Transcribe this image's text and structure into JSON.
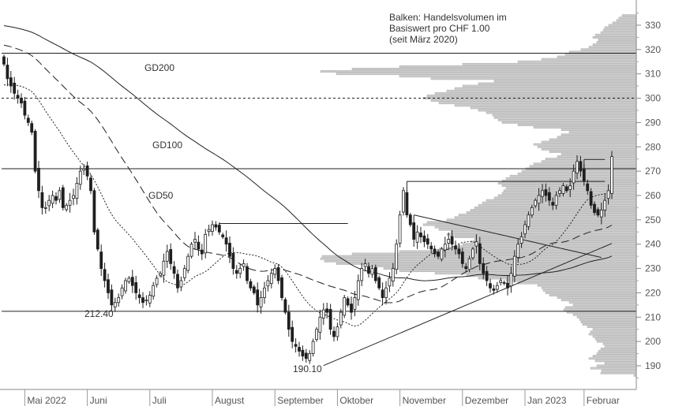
{
  "chart_data": {
    "type": "candlestick",
    "note_lines": [
      "Balken: Handelsvolumen im",
      "Basiswert pro CHF 1.00",
      "(seit März 2020)"
    ],
    "y_ticks": [
      190,
      200,
      210,
      220,
      230,
      240,
      250,
      260,
      270,
      280,
      290,
      300,
      310,
      320,
      330
    ],
    "ylim": [
      182,
      336
    ],
    "months": [
      "Mai 2022",
      "Juni",
      "Juli",
      "August",
      "September",
      "Oktober",
      "November",
      "Dezember",
      "Jan 2023",
      "Februar"
    ],
    "ma_labels": {
      "gd200": "GD200",
      "gd100": "GD100",
      "gd50": "GD50"
    },
    "level_labels": {
      "low1": "212.40",
      "low2": "190.10"
    },
    "levels": {
      "solid": [
        318.5,
        271.0,
        212.4
      ],
      "dashed": [
        300.0
      ]
    },
    "boxes": [
      {
        "from_idx": 62,
        "to_idx": 99,
        "price": 248.5
      },
      {
        "from_idx": 116,
        "to_idx": 173,
        "price": 265.8
      },
      {
        "from_idx": 167,
        "to_idx": 173,
        "price": 274.8
      }
    ],
    "trendlines": [
      {
        "from": [
          92,
          190.1
        ],
        "to": [
          175,
          240.3
        ]
      },
      {
        "from": [
          118,
          252.0
        ],
        "to": [
          172,
          234.5
        ]
      }
    ],
    "closes": [
      314,
      308,
      305,
      302,
      300,
      298,
      293,
      290,
      286,
      270,
      262,
      255,
      255,
      258,
      260,
      258,
      262,
      255,
      256,
      258,
      260,
      265,
      270,
      271,
      268,
      262,
      245,
      238,
      230,
      225,
      220,
      215,
      216,
      218,
      222,
      225,
      226,
      223,
      220,
      218,
      216,
      217,
      219,
      223,
      226,
      228,
      233,
      237,
      232,
      228,
      222,
      225,
      230,
      235,
      240,
      242,
      238,
      236,
      244,
      246,
      248,
      247,
      245,
      243,
      240,
      235,
      230,
      228,
      230,
      232,
      225,
      222,
      220,
      215,
      218,
      222,
      225,
      228,
      230,
      225,
      218,
      212,
      205,
      200,
      198,
      196,
      194,
      193,
      195,
      200,
      205,
      210,
      213,
      212,
      205,
      202,
      206,
      212,
      218,
      215,
      212,
      218,
      225,
      230,
      232,
      228,
      230,
      225,
      222,
      218,
      222,
      226,
      230,
      240,
      252,
      262,
      252,
      248,
      242,
      245,
      243,
      241,
      240,
      238,
      236,
      235,
      238,
      240,
      242,
      240,
      238,
      236,
      232,
      230,
      234,
      238,
      241,
      232,
      228,
      225,
      222,
      221,
      223,
      225,
      224,
      222,
      228,
      235,
      240,
      243,
      248,
      252,
      255,
      258,
      260,
      262,
      260,
      258,
      256,
      260,
      262,
      264,
      262,
      264,
      270,
      274,
      270,
      266,
      262,
      256,
      253,
      252,
      254,
      258,
      262,
      276
    ],
    "volume_profile": [
      [
        186,
        3
      ],
      [
        187,
        45
      ],
      [
        188,
        44
      ],
      [
        189,
        58
      ],
      [
        190,
        50
      ],
      [
        191,
        40
      ],
      [
        192,
        52
      ],
      [
        193,
        60
      ],
      [
        194,
        55
      ],
      [
        195,
        50
      ],
      [
        196,
        48
      ],
      [
        197,
        45
      ],
      [
        198,
        40
      ],
      [
        199,
        42
      ],
      [
        200,
        50
      ],
      [
        201,
        52
      ],
      [
        202,
        55
      ],
      [
        203,
        60
      ],
      [
        204,
        58
      ],
      [
        205,
        55
      ],
      [
        206,
        62
      ],
      [
        207,
        68
      ],
      [
        208,
        70
      ],
      [
        209,
        72
      ],
      [
        210,
        75
      ],
      [
        211,
        80
      ],
      [
        212,
        88
      ],
      [
        213,
        92
      ],
      [
        214,
        90
      ],
      [
        215,
        80
      ],
      [
        216,
        85
      ],
      [
        217,
        95
      ],
      [
        218,
        100
      ],
      [
        219,
        110
      ],
      [
        220,
        115
      ],
      [
        221,
        118
      ],
      [
        222,
        120
      ],
      [
        223,
        125
      ],
      [
        224,
        150
      ],
      [
        225,
        165
      ],
      [
        226,
        200
      ],
      [
        227,
        215
      ],
      [
        228,
        255
      ],
      [
        229,
        300
      ],
      [
        230,
        320
      ],
      [
        231,
        340
      ],
      [
        232,
        380
      ],
      [
        233,
        395
      ],
      [
        234,
        400
      ],
      [
        235,
        398
      ],
      [
        236,
        360
      ],
      [
        237,
        300
      ],
      [
        238,
        250
      ],
      [
        239,
        230
      ],
      [
        240,
        220
      ],
      [
        241,
        210
      ],
      [
        242,
        205
      ],
      [
        243,
        230
      ],
      [
        244,
        240
      ],
      [
        245,
        235
      ],
      [
        246,
        250
      ],
      [
        247,
        255
      ],
      [
        248,
        270
      ],
      [
        249,
        265
      ],
      [
        250,
        240
      ],
      [
        251,
        230
      ],
      [
        252,
        225
      ],
      [
        253,
        215
      ],
      [
        254,
        210
      ],
      [
        255,
        205
      ],
      [
        256,
        200
      ],
      [
        257,
        195
      ],
      [
        258,
        190
      ],
      [
        259,
        180
      ],
      [
        260,
        175
      ],
      [
        261,
        170
      ],
      [
        262,
        168
      ],
      [
        263,
        165
      ],
      [
        264,
        170
      ],
      [
        265,
        175
      ],
      [
        266,
        170
      ],
      [
        267,
        165
      ],
      [
        268,
        160
      ],
      [
        269,
        150
      ],
      [
        270,
        145
      ],
      [
        271,
        140
      ],
      [
        272,
        135
      ],
      [
        273,
        130
      ],
      [
        274,
        120
      ],
      [
        275,
        115
      ],
      [
        276,
        100
      ],
      [
        277,
        95
      ],
      [
        278,
        110
      ],
      [
        279,
        120
      ],
      [
        280,
        125
      ],
      [
        281,
        130
      ],
      [
        282,
        120
      ],
      [
        283,
        110
      ],
      [
        284,
        100
      ],
      [
        285,
        95
      ],
      [
        286,
        85
      ],
      [
        287,
        95
      ],
      [
        288,
        130
      ],
      [
        289,
        150
      ],
      [
        290,
        170
      ],
      [
        291,
        175
      ],
      [
        292,
        180
      ],
      [
        293,
        182
      ],
      [
        294,
        190
      ],
      [
        295,
        200
      ],
      [
        296,
        210
      ],
      [
        297,
        230
      ],
      [
        298,
        250
      ],
      [
        299,
        260
      ],
      [
        300,
        270
      ],
      [
        301,
        265
      ],
      [
        302,
        255
      ],
      [
        303,
        240
      ],
      [
        304,
        230
      ],
      [
        305,
        220
      ],
      [
        306,
        200
      ],
      [
        307,
        180
      ],
      [
        308,
        260
      ],
      [
        309,
        300
      ],
      [
        310,
        380
      ],
      [
        311,
        400
      ],
      [
        312,
        360
      ],
      [
        313,
        300
      ],
      [
        314,
        220
      ],
      [
        315,
        150
      ],
      [
        316,
        120
      ],
      [
        317,
        100
      ],
      [
        318,
        90
      ],
      [
        319,
        85
      ],
      [
        320,
        70
      ],
      [
        321,
        60
      ],
      [
        322,
        55
      ],
      [
        323,
        50
      ],
      [
        324,
        48
      ],
      [
        325,
        55
      ],
      [
        326,
        52
      ],
      [
        327,
        45
      ],
      [
        328,
        42
      ],
      [
        329,
        40
      ],
      [
        330,
        35
      ],
      [
        331,
        30
      ],
      [
        332,
        25
      ],
      [
        333,
        22
      ],
      [
        334,
        18
      ]
    ]
  }
}
